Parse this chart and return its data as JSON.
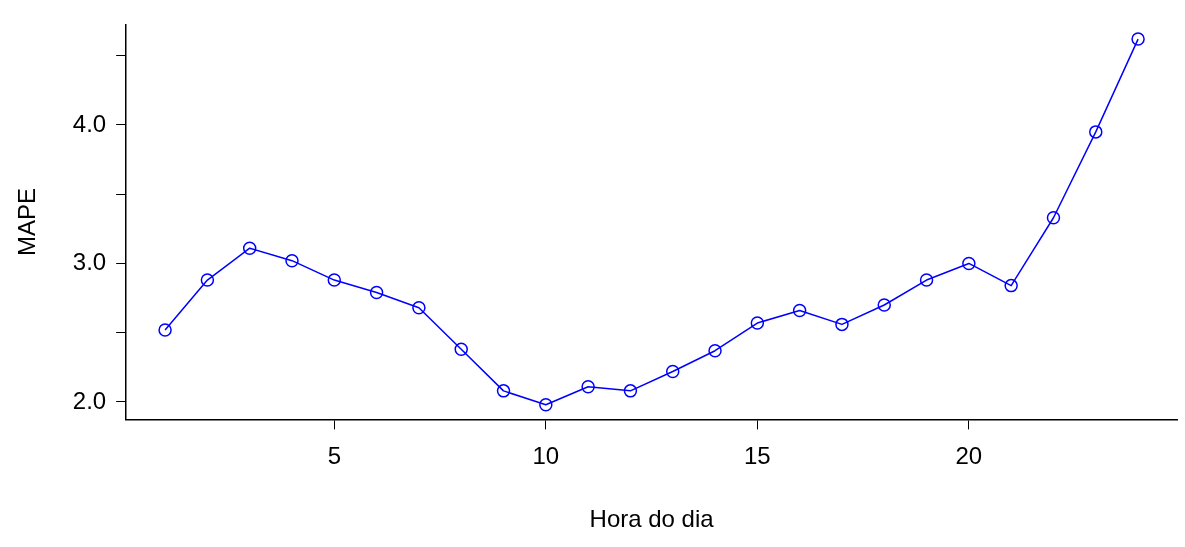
{
  "chart_data": {
    "type": "line",
    "xlabel": "Hora do dia",
    "ylabel": "MAPE",
    "x": [
      1,
      2,
      3,
      4,
      5,
      6,
      7,
      8,
      9,
      10,
      11,
      12,
      13,
      14,
      15,
      16,
      17,
      18,
      19,
      20,
      21,
      22,
      23,
      24
    ],
    "series": [
      {
        "color": "#0000ff",
        "values": [
          2.52,
          2.88,
          3.11,
          3.02,
          2.88,
          2.79,
          2.68,
          2.38,
          2.08,
          1.98,
          2.11,
          2.08,
          2.22,
          2.37,
          2.57,
          2.66,
          2.56,
          2.7,
          2.88,
          3.0,
          2.84,
          3.33,
          3.95,
          4.62
        ]
      }
    ],
    "xlim": [
      0.08,
      24.92
    ],
    "xticks": [
      5,
      10,
      15,
      20
    ],
    "ylim": [
      1.874,
      4.726
    ],
    "yticks": [
      {
        "value": 2,
        "label": "2.0"
      },
      {
        "value": 2.5,
        "label": null
      },
      {
        "value": 3,
        "label": "3.0"
      },
      {
        "value": 3.5,
        "label": null
      },
      {
        "value": 4,
        "label": "4.0"
      },
      {
        "value": 4.5,
        "label": null
      }
    ],
    "marker": "circle",
    "line_style": "solid",
    "grid": false,
    "legend": false
  }
}
